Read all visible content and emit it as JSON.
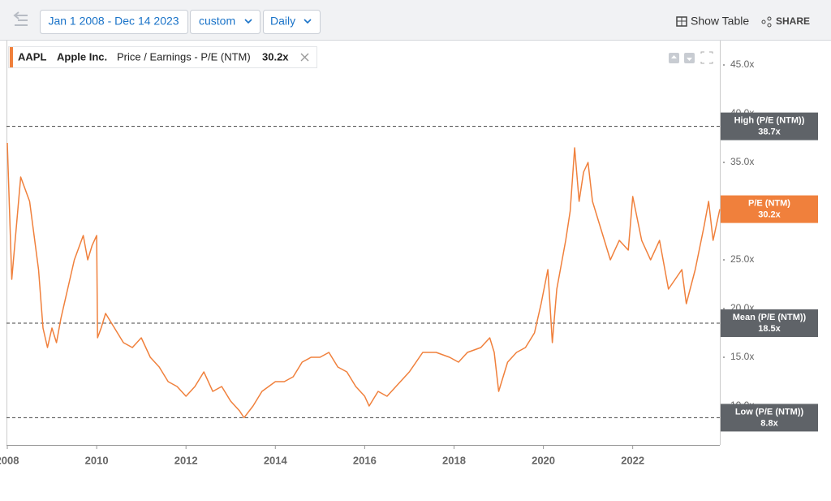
{
  "toolbar": {
    "date_range": "Jan 1 2008 - Dec 14 2023",
    "mode": "custom",
    "frequency": "Daily",
    "show_table": "Show Table",
    "share": "SHARE"
  },
  "chart_data": {
    "type": "line",
    "legend": {
      "ticker": "AAPL",
      "company": "Apple Inc.",
      "metric": "Price / Earnings - P/E (NTM)"
    },
    "x": [
      2008.0,
      2008.1,
      2008.3,
      2008.5,
      2008.7,
      2008.8,
      2008.9,
      2009.0,
      2009.1,
      2009.2,
      2009.4,
      2009.5,
      2009.7,
      2009.8,
      2009.9,
      2010.0,
      2010.02,
      2010.1,
      2010.2,
      2010.4,
      2010.6,
      2010.8,
      2011.0,
      2011.2,
      2011.4,
      2011.6,
      2011.8,
      2012.0,
      2012.2,
      2012.4,
      2012.6,
      2012.8,
      2013.0,
      2013.2,
      2013.3,
      2013.5,
      2013.7,
      2014.0,
      2014.2,
      2014.4,
      2014.6,
      2014.8,
      2015.0,
      2015.2,
      2015.4,
      2015.6,
      2015.8,
      2016.0,
      2016.1,
      2016.3,
      2016.5,
      2016.8,
      2017.0,
      2017.3,
      2017.6,
      2017.9,
      2018.1,
      2018.3,
      2018.6,
      2018.8,
      2018.9,
      2019.0,
      2019.2,
      2019.4,
      2019.6,
      2019.8,
      2019.95,
      2020.1,
      2020.2,
      2020.3,
      2020.5,
      2020.6,
      2020.7,
      2020.8,
      2020.9,
      2021.0,
      2021.1,
      2021.3,
      2021.5,
      2021.7,
      2021.9,
      2022.0,
      2022.2,
      2022.4,
      2022.6,
      2022.8,
      2022.95,
      2023.1,
      2023.2,
      2023.4,
      2023.6,
      2023.7,
      2023.8,
      2023.95
    ],
    "series": [
      {
        "name": "AAPL",
        "color": "#f0803c",
        "values": [
          37,
          23,
          33.5,
          31,
          24,
          18,
          16,
          18,
          16.5,
          19,
          23,
          25,
          27.5,
          25,
          26.5,
          27.5,
          17,
          18,
          19.5,
          18,
          16.5,
          16,
          17,
          15,
          14,
          12.5,
          12,
          11,
          12,
          13.5,
          11.5,
          12,
          10.5,
          9.5,
          8.8,
          10,
          11.5,
          12.5,
          12.5,
          13,
          14.5,
          15,
          15,
          15.5,
          14,
          13.5,
          12,
          11,
          10,
          11.5,
          11,
          12.5,
          13.5,
          15.5,
          15.5,
          15,
          14.5,
          15.5,
          16,
          17,
          15.5,
          11.5,
          14.5,
          15.5,
          16,
          17.5,
          20.5,
          24,
          16.5,
          22,
          27,
          30,
          36.5,
          31,
          34,
          35,
          31,
          28,
          25,
          27,
          26,
          31.5,
          27,
          25,
          27,
          22,
          23,
          24,
          20.5,
          24,
          28.5,
          31,
          27,
          30.2
        ]
      }
    ],
    "current": {
      "label": "P/E (NTM)",
      "value": 30.2,
      "value_label": "30.2x"
    },
    "reference_lines": [
      {
        "label": "High (P/E (NTM))",
        "value": 38.7,
        "value_label": "38.7x"
      },
      {
        "label": "Mean (P/E (NTM))",
        "value": 18.5,
        "value_label": "18.5x"
      },
      {
        "label": "Low (P/E (NTM))",
        "value": 8.8,
        "value_label": "8.8x"
      }
    ],
    "xlim": [
      2008,
      2023.95
    ],
    "xticks": [
      2008,
      2010,
      2012,
      2014,
      2016,
      2018,
      2020,
      2022
    ],
    "ylim": [
      6,
      47.5
    ],
    "yticks": [
      {
        "value": 10,
        "label": "10.0x"
      },
      {
        "value": 15,
        "label": "15.0x"
      },
      {
        "value": 20,
        "label": "20.0x"
      },
      {
        "value": 25,
        "label": "25.0x"
      },
      {
        "value": 30,
        "label": "30.0x"
      },
      {
        "value": 35,
        "label": "35.0x"
      },
      {
        "value": 40,
        "label": "40.0x"
      },
      {
        "value": 45,
        "label": "45.0x"
      }
    ]
  }
}
